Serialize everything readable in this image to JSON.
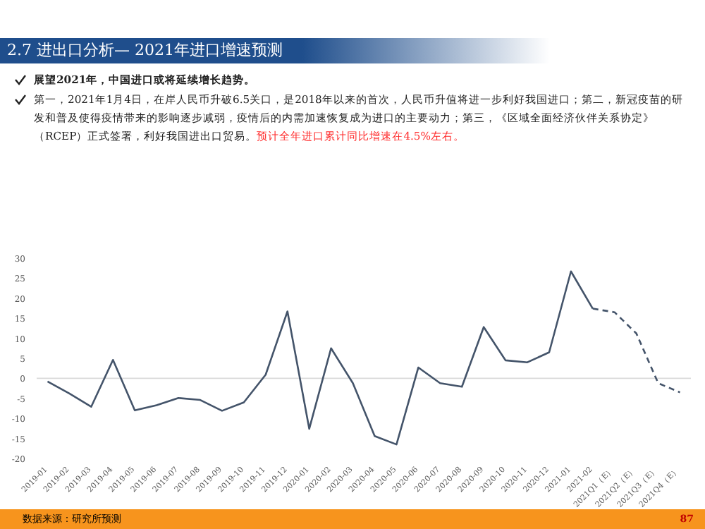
{
  "chart_data": {
    "type": "line",
    "title": "2.7 进出口分析— 2021年进口增速预测",
    "annotations": [
      "展望2021年，中国进口或将延续增长趋势。",
      "第一，2021年1月4日，在岸人民币升破6.5关口，是2018年以来的首次，人民币升值将进一步利好我国进口；第二，新冠疫苗的研发和普及使得疫情带来的影响逐步减弱，疫情后的内需加速恢复成为进口的主要动力；第三，《区域全面经济伙伴关系协定》（RCEP）正式签署，利好我国进出口贸易。",
      "预计全年进口累计同比增速在4.5%左右。",
      "数据来源：研究所预测",
      "87"
    ],
    "categories": [
      "2019-01",
      "2019-02",
      "2019-03",
      "2019-04",
      "2019-05",
      "2019-06",
      "2019-07",
      "2019-08",
      "2019-09",
      "2019-10",
      "2019-11",
      "2019-12",
      "2020-01",
      "2020-02",
      "2020-03",
      "2020-04",
      "2020-05",
      "2020-06",
      "2020-07",
      "2020-08",
      "2020-09",
      "2020-10",
      "2020-11",
      "2020-12",
      "2021-01",
      "2021-02",
      "2021Q1（E）",
      "2021Q2（E）",
      "2021Q3（E）",
      "2021Q4（E）"
    ],
    "series": [
      {
        "color": "#44546a",
        "line_style": "solid",
        "values": [
          -0.8,
          -3.8,
          -7.1,
          4.6,
          -8,
          -6.7,
          -4.9,
          -5.4,
          -8.1,
          -6,
          0.9,
          16.7,
          -12.6,
          7.5,
          -1.2,
          -14.4,
          -16.5,
          2.7,
          -1.2,
          -2.1,
          12.8,
          4.5,
          4,
          6.5,
          26.7,
          17.4,
          null,
          null,
          null,
          null
        ]
      },
      {
        "color": "#44546a",
        "line_style": "dashed",
        "values": [
          null,
          null,
          null,
          null,
          null,
          null,
          null,
          null,
          null,
          null,
          null,
          null,
          null,
          null,
          null,
          null,
          null,
          null,
          null,
          null,
          null,
          null,
          null,
          null,
          null,
          17.4,
          16.5,
          11.2,
          -1.2,
          -3.5
        ]
      }
    ],
    "ylim": [
      -20,
      30
    ],
    "yticks": [
      -20,
      -15,
      -10,
      -5,
      0,
      5,
      10,
      15,
      20,
      25,
      30
    ],
    "ref_lines": [
      {
        "axis": "y",
        "value": 0,
        "color": "#d9d9d9"
      }
    ],
    "marker": "none",
    "grid": false
  }
}
